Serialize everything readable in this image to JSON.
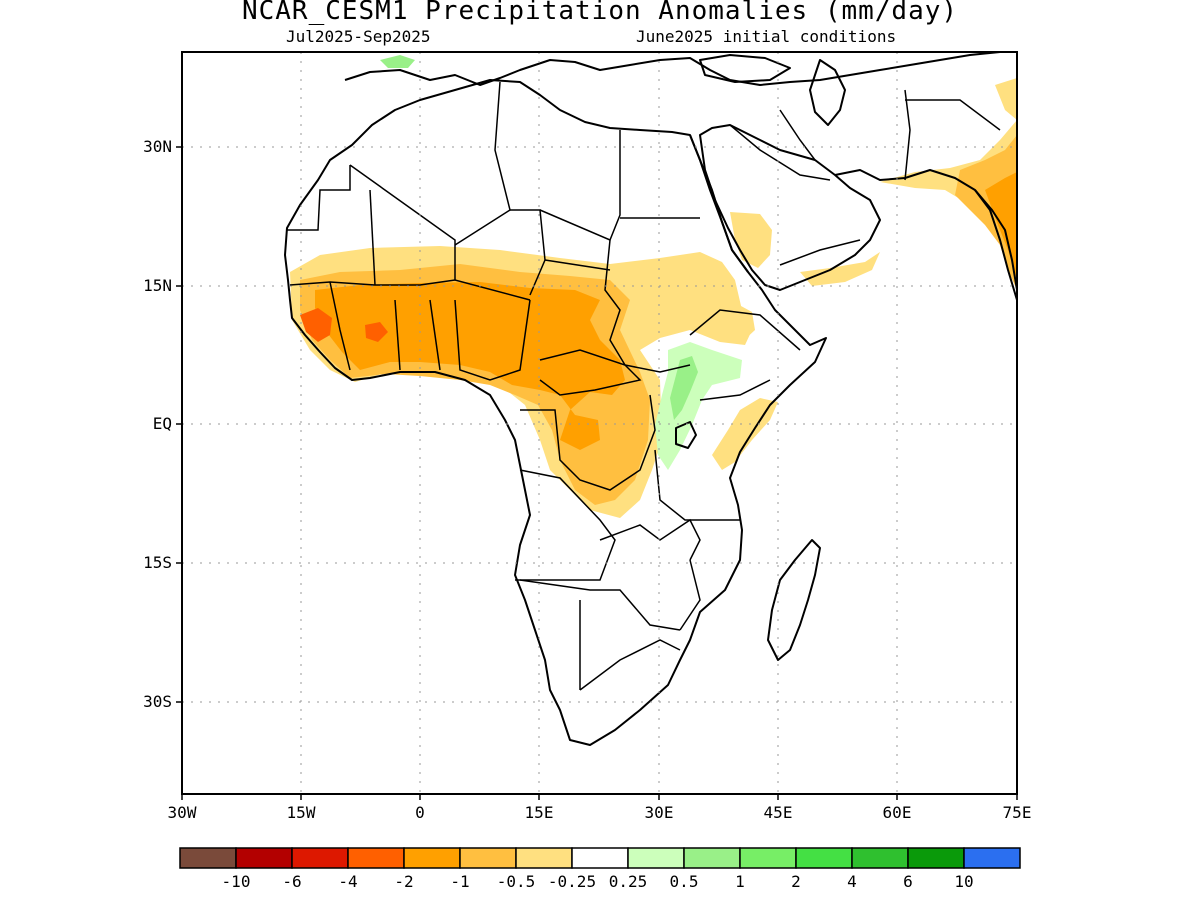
{
  "title": "NCAR_CESM1 Precipitation Anomalies (mm/day)",
  "subtitle_left": "Jul2025-Sep2025",
  "subtitle_right": "June2025 initial conditions",
  "map": {
    "projection": "cylindrical equidistant",
    "lon_range": [
      -30,
      75
    ],
    "lat_range": [
      -46,
      47
    ],
    "grid": "dotted",
    "lat_ticks": [
      "30N",
      "15N",
      "EQ",
      "15S",
      "30S"
    ],
    "lon_ticks": [
      "30W",
      "15W",
      "0",
      "15E",
      "30E",
      "45E",
      "60E",
      "75E"
    ]
  },
  "colorbar": {
    "colors": [
      "#7a4a3a",
      "#b30000",
      "#dd1800",
      "#ff6000",
      "#ffa000",
      "#ffbf40",
      "#ffe080",
      "#ffffff",
      "#ccffbb",
      "#99f088",
      "#77ee66",
      "#44e044",
      "#2fc02f",
      "#0a9a0a",
      "#2b6ff0"
    ],
    "labels": [
      "-10",
      "-6",
      "-4",
      "-2",
      "-1",
      "-0.5",
      "-0.25",
      "0.25",
      "0.5",
      "1",
      "2",
      "4",
      "6",
      "10"
    ]
  },
  "anomaly_levels": {
    "light_deficit": "#ffe080",
    "moderate_deficit": "#ffbf40",
    "strong_deficit": "#ffa000",
    "severe_deficit": "#ff6000",
    "light_surplus": "#ccffbb",
    "moderate_surplus": "#99f088"
  }
}
